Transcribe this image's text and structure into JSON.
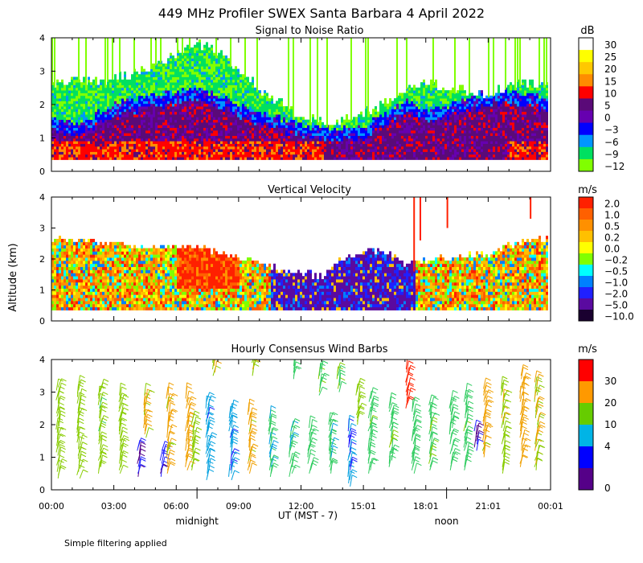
{
  "figure": {
    "title": "449 MHz Profiler SWEX Santa Barbara  4 April 2022",
    "ylabel": "Altitude (km)",
    "xlabel": "UT  (MST - 7)",
    "x_ticks": [
      "00:00",
      "03:00",
      "06:00",
      "09:00",
      "12:00",
      "15:01",
      "18:01",
      "21:01",
      "00:01"
    ],
    "local_markers": [
      {
        "label": "midnight",
        "hour_ut": 7
      },
      {
        "label": "noon",
        "hour_ut": 19
      }
    ],
    "y_ticks": [
      "0",
      "1",
      "2",
      "3",
      "4"
    ],
    "footer": "Simple filtering applied"
  },
  "chart_data": [
    {
      "type": "heatmap",
      "title": "Signal to Noise Ratio",
      "colorbar_unit": "dB",
      "colorbar_labels": [
        "30",
        "25",
        "20",
        "15",
        "10",
        "5",
        "0",
        "−3",
        "−6",
        "−9",
        "−12"
      ],
      "colorbar_colors": [
        "#ffffff",
        "#ffff00",
        "#ffc800",
        "#ff8c00",
        "#ff0000",
        "#5a0a78",
        "#6600b0",
        "#0000ff",
        "#0096ff",
        "#00e060",
        "#80ff00"
      ],
      "xlim_hours": [
        0,
        24
      ],
      "ylim_km": [
        0,
        4
      ],
      "description_values": {
        "top_of_coverage_km_by_hour": [
          2.6,
          2.7,
          2.6,
          2.8,
          2.9,
          3.2,
          3.5,
          3.8,
          3.5,
          3.0,
          2.4,
          2.0,
          1.6,
          1.4,
          1.5,
          1.7,
          2.0,
          2.4,
          2.6,
          2.5,
          2.4,
          2.3,
          2.5,
          2.6,
          2.6
        ],
        "strong_layer_top_km_by_hour": [
          1.3,
          1.0,
          1.3,
          1.6,
          1.8,
          1.9,
          2.0,
          2.1,
          1.9,
          1.6,
          1.4,
          1.2,
          1.0,
          0.9,
          0.9,
          1.0,
          1.4,
          1.7,
          1.4,
          1.6,
          1.8,
          2.0,
          2.0,
          1.9,
          1.8
        ]
      }
    },
    {
      "type": "heatmap",
      "title": "Vertical Velocity",
      "colorbar_unit": "m/s",
      "colorbar_labels": [
        "2.0",
        "1.0",
        "0.5",
        "0.2",
        "0.0",
        "−0.2",
        "−0.5",
        "−1.0",
        "−2.0",
        "−5.0",
        "−10.0"
      ],
      "colorbar_colors": [
        "#ff2000",
        "#ff6000",
        "#ff9000",
        "#ffc000",
        "#ffff00",
        "#80ff00",
        "#00ffff",
        "#0080ff",
        "#2020ff",
        "#5a0aa0",
        "#1a0030"
      ],
      "xlim_hours": [
        0,
        24
      ],
      "ylim_km": [
        0,
        4
      ],
      "description_values": {
        "top_of_coverage_km_by_hour": [
          2.6,
          2.6,
          2.5,
          2.5,
          2.3,
          2.3,
          2.4,
          2.3,
          2.2,
          2.0,
          1.8,
          1.6,
          1.5,
          1.4,
          2.0,
          2.2,
          2.2,
          1.8,
          1.9,
          2.0,
          2.1,
          2.1,
          2.4,
          2.6,
          2.6
        ]
      }
    },
    {
      "type": "wind_barbs",
      "title": "Hourly Consensus Wind Barbs",
      "colorbar_unit": "m/s",
      "colorbar_labels": [
        "30",
        "20",
        "10",
        "4",
        "0"
      ],
      "colorbar_colors": [
        "#ff0000",
        "#ff9900",
        "#66cc00",
        "#00b4e6",
        "#0000ff",
        "#550088"
      ],
      "xlim_hours": [
        0,
        24
      ],
      "ylim_km": [
        0,
        4
      ],
      "columns": [
        {
          "hour": 0.3,
          "bottom_km": 0.35,
          "top_km": 3.2,
          "speed_ms": 15
        },
        {
          "hour": 1.3,
          "bottom_km": 0.35,
          "top_km": 3.2,
          "speed_ms": 14
        },
        {
          "hour": 2.3,
          "bottom_km": 0.5,
          "top_km": 3.2,
          "speed_ms": 13
        },
        {
          "hour": 3.3,
          "bottom_km": 0.5,
          "top_km": 3.0,
          "speed_ms": 14
        },
        {
          "hour": 4.2,
          "bottom_km": 0.4,
          "top_km": 1.3,
          "speed_ms": 3
        },
        {
          "hour": 4.5,
          "bottom_km": 1.6,
          "top_km": 3.0,
          "speed_ms": 18
        },
        {
          "hour": 5.3,
          "bottom_km": 0.4,
          "top_km": 1.2,
          "speed_ms": 4
        },
        {
          "hour": 5.6,
          "bottom_km": 0.5,
          "top_km": 3.0,
          "speed_ms": 18
        },
        {
          "hour": 6.5,
          "bottom_km": 0.6,
          "top_km": 3.0,
          "speed_ms": 20
        },
        {
          "hour": 6.8,
          "bottom_km": 0.6,
          "top_km": 2.2,
          "speed_ms": 15
        },
        {
          "hour": 7.5,
          "bottom_km": 0.3,
          "top_km": 2.8,
          "speed_ms": 6
        },
        {
          "hour": 7.8,
          "bottom_km": 3.5,
          "top_km": 4.0,
          "speed_ms": 17
        },
        {
          "hour": 8.6,
          "bottom_km": 0.3,
          "top_km": 2.5,
          "speed_ms": 6
        },
        {
          "hour": 9.5,
          "bottom_km": 0.5,
          "top_km": 2.5,
          "speed_ms": 18
        },
        {
          "hour": 9.7,
          "bottom_km": 3.5,
          "top_km": 4.0,
          "speed_ms": 16
        },
        {
          "hour": 10.5,
          "bottom_km": 0.4,
          "top_km": 2.3,
          "speed_ms": 9
        },
        {
          "hour": 11.5,
          "bottom_km": 0.4,
          "top_km": 2.0,
          "speed_ms": 9
        },
        {
          "hour": 11.6,
          "bottom_km": 3.4,
          "top_km": 3.9,
          "speed_ms": 10
        },
        {
          "hour": 12.4,
          "bottom_km": 0.5,
          "top_km": 2.0,
          "speed_ms": 10
        },
        {
          "hour": 12.9,
          "bottom_km": 2.9,
          "top_km": 3.8,
          "speed_ms": 12
        },
        {
          "hour": 13.4,
          "bottom_km": 0.5,
          "top_km": 2.2,
          "speed_ms": 9
        },
        {
          "hour": 13.8,
          "bottom_km": 3.0,
          "top_km": 3.7,
          "speed_ms": 12
        },
        {
          "hour": 14.3,
          "bottom_km": 0.1,
          "top_km": 2.0,
          "speed_ms": 5
        },
        {
          "hour": 14.7,
          "bottom_km": 2.0,
          "top_km": 3.2,
          "speed_ms": 14
        },
        {
          "hour": 15.3,
          "bottom_km": 0.5,
          "top_km": 2.9,
          "speed_ms": 11
        },
        {
          "hour": 16.3,
          "bottom_km": 0.7,
          "top_km": 2.7,
          "speed_ms": 11
        },
        {
          "hour": 17.1,
          "bottom_km": 2.5,
          "top_km": 3.8,
          "speed_ms": 30
        },
        {
          "hour": 17.4,
          "bottom_km": 0.5,
          "top_km": 2.6,
          "speed_ms": 10
        },
        {
          "hour": 18.2,
          "bottom_km": 0.6,
          "top_km": 2.7,
          "speed_ms": 11
        },
        {
          "hour": 19.2,
          "bottom_km": 0.6,
          "top_km": 2.8,
          "speed_ms": 10
        },
        {
          "hour": 19.9,
          "bottom_km": 0.6,
          "top_km": 3.0,
          "speed_ms": 11
        },
        {
          "hour": 20.4,
          "bottom_km": 1.2,
          "top_km": 1.9,
          "speed_ms": 3
        },
        {
          "hour": 20.8,
          "bottom_km": 1.0,
          "top_km": 3.2,
          "speed_ms": 18
        },
        {
          "hour": 21.7,
          "bottom_km": 0.5,
          "top_km": 3.2,
          "speed_ms": 16
        },
        {
          "hour": 22.6,
          "bottom_km": 0.7,
          "top_km": 3.6,
          "speed_ms": 20
        },
        {
          "hour": 23.3,
          "bottom_km": 0.6,
          "top_km": 3.4,
          "speed_ms": 17
        }
      ]
    }
  ]
}
